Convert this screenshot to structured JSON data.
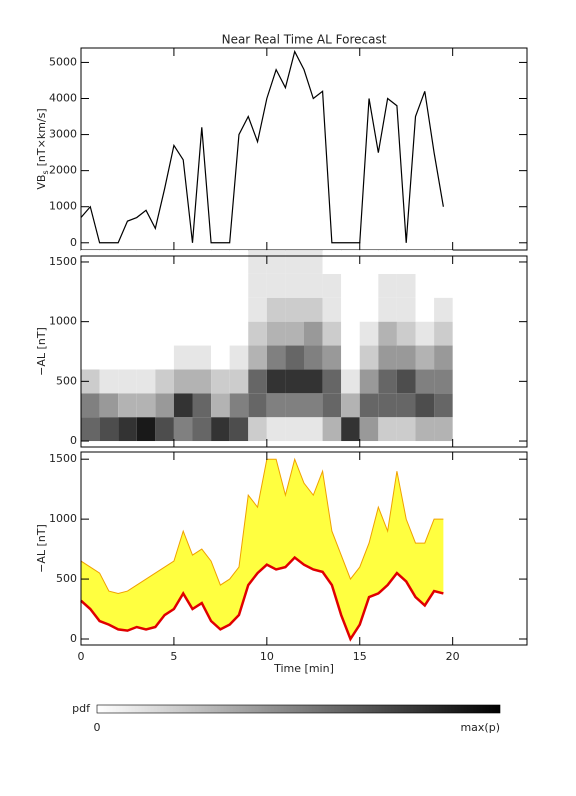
{
  "chart_data": [
    {
      "type": "line",
      "title": "Near Real Time AL Forecast",
      "ylabel_main": "VB",
      "ylabel_sub": "s",
      "ylabel_unit": "[nT×km/s]",
      "xlim": [
        0,
        24
      ],
      "xticks": [
        0,
        5,
        10,
        15,
        20
      ],
      "ylim": [
        -200,
        5400
      ],
      "yticks": [
        0,
        1000,
        2000,
        3000,
        4000,
        5000
      ],
      "x": [
        0,
        0.5,
        1,
        1.5,
        2,
        2.5,
        3,
        3.5,
        4,
        4.5,
        5,
        5.5,
        6,
        6.5,
        7,
        7.5,
        8,
        8.5,
        9,
        9.5,
        10,
        10.5,
        11,
        11.5,
        12,
        12.5,
        13,
        13.5,
        14,
        14.5,
        15,
        15.5,
        16,
        16.5,
        17,
        17.5,
        18,
        18.5,
        19,
        19.5
      ],
      "series": [
        {
          "color": "#000000",
          "values": [
            700,
            1000,
            0,
            0,
            0,
            600,
            700,
            900,
            400,
            1500,
            2700,
            2300,
            0,
            3200,
            0,
            0,
            0,
            3000,
            3500,
            2800,
            4000,
            4800,
            4300,
            5300,
            4800,
            4000,
            4200,
            0,
            0,
            0,
            0,
            4000,
            2500,
            4000,
            3800,
            0,
            3500,
            4200,
            2500,
            1000
          ]
        }
      ]
    },
    {
      "type": "heatmap",
      "ylabel": "−AL [nT]",
      "xlim": [
        0,
        24
      ],
      "xticks": [
        0,
        5,
        10,
        15,
        20
      ],
      "ylim": [
        -50,
        1550
      ],
      "yticks": [
        0,
        500,
        1000,
        1500
      ],
      "x_bins": [
        0,
        1,
        2,
        3,
        4,
        5,
        6,
        7,
        8,
        9,
        10,
        11,
        12,
        13,
        14,
        15,
        16,
        17,
        18,
        19,
        20
      ],
      "y_bins": [
        0,
        200,
        400,
        600,
        800,
        1000,
        1200,
        1400,
        1600
      ],
      "z": [
        [
          0.6,
          0.5,
          0.2,
          0,
          0,
          0,
          0,
          0
        ],
        [
          0.7,
          0.4,
          0.1,
          0,
          0,
          0,
          0,
          0
        ],
        [
          0.8,
          0.3,
          0.1,
          0,
          0,
          0,
          0,
          0
        ],
        [
          0.9,
          0.3,
          0.1,
          0,
          0,
          0,
          0,
          0
        ],
        [
          0.7,
          0.4,
          0.2,
          0,
          0,
          0,
          0,
          0
        ],
        [
          0.5,
          0.8,
          0.3,
          0.1,
          0,
          0,
          0,
          0
        ],
        [
          0.6,
          0.6,
          0.3,
          0.1,
          0,
          0,
          0,
          0
        ],
        [
          0.8,
          0.3,
          0.2,
          0,
          0,
          0,
          0,
          0
        ],
        [
          0.7,
          0.5,
          0.2,
          0.1,
          0,
          0,
          0,
          0
        ],
        [
          0.2,
          0.6,
          0.6,
          0.3,
          0.2,
          0.1,
          0.1,
          0.1
        ],
        [
          0.1,
          0.5,
          0.8,
          0.5,
          0.3,
          0.2,
          0.1,
          0.1
        ],
        [
          0.1,
          0.5,
          0.8,
          0.6,
          0.3,
          0.2,
          0.1,
          0.1
        ],
        [
          0.1,
          0.5,
          0.8,
          0.5,
          0.4,
          0.2,
          0.1,
          0.1
        ],
        [
          0.3,
          0.6,
          0.6,
          0.4,
          0.2,
          0.1,
          0.1,
          0
        ],
        [
          0.8,
          0.3,
          0.1,
          0,
          0,
          0,
          0,
          0
        ],
        [
          0.4,
          0.6,
          0.4,
          0.2,
          0.1,
          0,
          0,
          0
        ],
        [
          0.2,
          0.6,
          0.6,
          0.4,
          0.3,
          0.1,
          0.1,
          0
        ],
        [
          0.2,
          0.6,
          0.7,
          0.4,
          0.2,
          0.1,
          0.1,
          0
        ],
        [
          0.3,
          0.7,
          0.5,
          0.3,
          0.1,
          0,
          0,
          0
        ],
        [
          0.3,
          0.6,
          0.5,
          0.4,
          0.2,
          0.1,
          0,
          0
        ]
      ],
      "colorbar": {
        "label": "pdf",
        "min_label": 0,
        "max_label": "max(p)"
      }
    },
    {
      "type": "band",
      "ylabel": "−AL [nT]",
      "xlabel": "Time [min]",
      "xlim": [
        0,
        24
      ],
      "xticks": [
        0,
        5,
        10,
        15,
        20
      ],
      "ylim": [
        -50,
        1560
      ],
      "yticks": [
        0,
        500,
        1000,
        1500
      ],
      "x": [
        0,
        0.5,
        1,
        1.5,
        2,
        2.5,
        3,
        3.5,
        4,
        4.5,
        5,
        5.5,
        6,
        6.5,
        7,
        7.5,
        8,
        8.5,
        9,
        9.5,
        10,
        10.5,
        11,
        11.5,
        12,
        12.5,
        13,
        13.5,
        14,
        14.5,
        15,
        15.5,
        16,
        16.5,
        17,
        17.5,
        18,
        18.5,
        19,
        19.5
      ],
      "series": [
        {
          "color": "#e00000",
          "values": [
            320,
            250,
            150,
            120,
            80,
            70,
            100,
            80,
            100,
            200,
            250,
            380,
            250,
            300,
            150,
            80,
            120,
            200,
            450,
            550,
            620,
            580,
            600,
            680,
            620,
            580,
            560,
            450,
            200,
            0,
            120,
            350,
            380,
            450,
            550,
            480,
            350,
            280,
            400,
            380
          ]
        },
        {
          "color": "#ffff40",
          "edge_color": "#f0a000",
          "values": [
            650,
            600,
            550,
            400,
            380,
            400,
            450,
            500,
            550,
            600,
            650,
            900,
            700,
            750,
            650,
            450,
            500,
            600,
            1200,
            1100,
            1500,
            1500,
            1200,
            1500,
            1300,
            1200,
            1400,
            900,
            700,
            500,
            600,
            800,
            1100,
            900,
            1400,
            1000,
            800,
            800,
            1000,
            1000
          ]
        }
      ]
    }
  ]
}
